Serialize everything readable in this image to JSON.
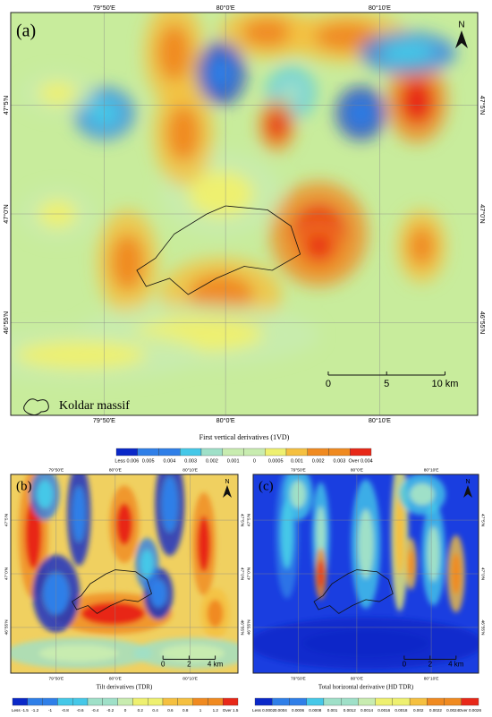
{
  "panels": [
    {
      "label": "(a)",
      "north": "N",
      "lon_labels": [
        "79°50'E",
        "80°0'E",
        "80°10'E"
      ],
      "lat_labels": [
        "47°5'N",
        "47°0'N",
        "46°55'N"
      ],
      "legend": "Koldar massif",
      "scale": [
        "0",
        "5",
        "10 km"
      ],
      "colorbar": {
        "title": "First vertical derivatives (1VD)",
        "classes": [
          "Less 0.006",
          "0.005",
          "0.004",
          "0.003",
          "0.002",
          "0.001",
          "0",
          "0.0005",
          "0.001",
          "0.002",
          "0.003",
          "Over 0.004"
        ]
      }
    },
    {
      "label": "(b)",
      "north": "N",
      "lon_labels": [
        "79°50'E",
        "80°0'E",
        "80°10'E"
      ],
      "lat_labels": [
        "47°5'N",
        "47°0'N",
        "46°55'N"
      ],
      "scale": [
        "0",
        "2",
        "4 km"
      ],
      "colorbar": {
        "title": "Tilt derivatives (TDR)",
        "classes": [
          "Less -1.5",
          "-1.2",
          "-1",
          "-0.8",
          "-0.6",
          "-0.4",
          "-0.2",
          "0",
          "0.2",
          "0.4",
          "0.6",
          "0.8",
          "1",
          "1.2",
          "Over 1.5"
        ]
      }
    },
    {
      "label": "(c)",
      "north": "N",
      "lon_labels": [
        "79°50'E",
        "80°0'E",
        "80°10'E"
      ],
      "lat_labels": [
        "47°5'N",
        "47°0'N",
        "46°55'N"
      ],
      "scale": [
        "0",
        "2",
        "4 km"
      ],
      "colorbar": {
        "title": "Total horizontal derivative (HD TDR)",
        "classes": [
          "Less 0.0002",
          "0.0004",
          "0.0006",
          "0.0008",
          "0.001",
          "0.0012",
          "0.0014",
          "0.0016",
          "0.0018",
          "0.002",
          "0.0022",
          "0.0024",
          "Over 0.0026"
        ]
      }
    }
  ]
}
